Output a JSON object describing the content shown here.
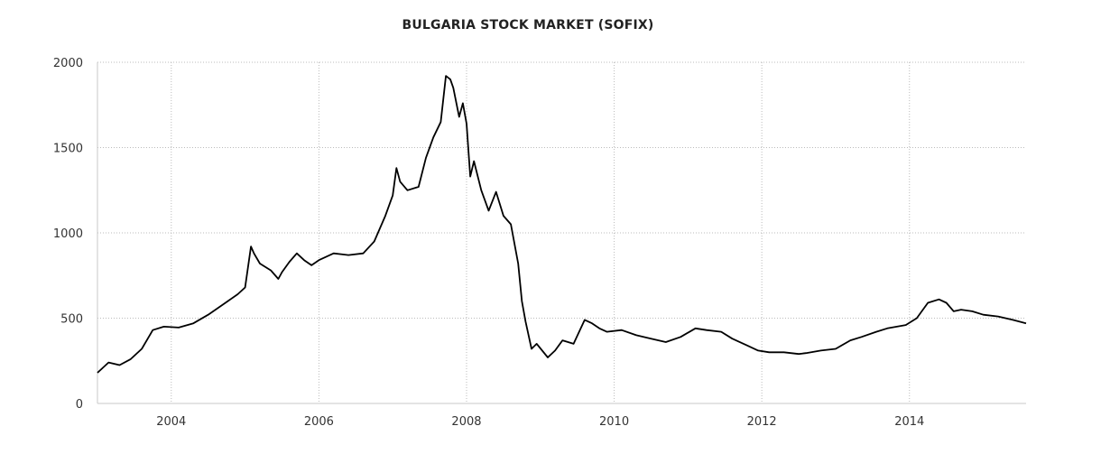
{
  "chart_data": {
    "type": "line",
    "title": "BULGARIA STOCK MARKET (SOFIX)",
    "xlabel": "",
    "ylabel": "",
    "grid": true,
    "legend": "none",
    "line_color": "#000000",
    "grid_color": "#bbbbbb",
    "xlim": [
      2003.0,
      2015.58
    ],
    "ylim": [
      0,
      2000
    ],
    "x_ticks": [
      2004,
      2006,
      2008,
      2010,
      2012,
      2014
    ],
    "y_ticks": [
      0,
      500,
      1000,
      1500,
      2000
    ],
    "series": [
      {
        "x": [
          2003.0,
          2003.15,
          2003.3,
          2003.45,
          2003.6,
          2003.75,
          2003.9,
          2004.1,
          2004.3,
          2004.5,
          2004.7,
          2004.9,
          2005.0,
          2005.08,
          2005.12,
          2005.2,
          2005.35,
          2005.45,
          2005.5,
          2005.6,
          2005.7,
          2005.8,
          2005.9,
          2006.0,
          2006.2,
          2006.4,
          2006.6,
          2006.75,
          2006.9,
          2007.0,
          2007.05,
          2007.1,
          2007.2,
          2007.35,
          2007.45,
          2007.55,
          2007.65,
          2007.72,
          2007.78,
          2007.82,
          2007.9,
          2007.95,
          2008.0,
          2008.05,
          2008.1,
          2008.2,
          2008.3,
          2008.4,
          2008.5,
          2008.6,
          2008.7,
          2008.75,
          2008.8,
          2008.88,
          2008.95,
          2009.1,
          2009.2,
          2009.3,
          2009.45,
          2009.6,
          2009.7,
          2009.8,
          2009.9,
          2010.1,
          2010.3,
          2010.5,
          2010.7,
          2010.9,
          2011.1,
          2011.25,
          2011.45,
          2011.6,
          2011.8,
          2011.95,
          2012.1,
          2012.3,
          2012.5,
          2012.6,
          2012.8,
          2013.0,
          2013.2,
          2013.35,
          2013.55,
          2013.7,
          2013.95,
          2014.1,
          2014.25,
          2014.4,
          2014.5,
          2014.6,
          2014.7,
          2014.85,
          2015.0,
          2015.2,
          2015.4,
          2015.58
        ],
        "y": [
          180,
          240,
          225,
          260,
          320,
          430,
          450,
          445,
          470,
          520,
          580,
          640,
          680,
          920,
          880,
          820,
          780,
          730,
          770,
          830,
          880,
          840,
          810,
          840,
          880,
          870,
          880,
          950,
          1100,
          1220,
          1380,
          1300,
          1250,
          1270,
          1440,
          1560,
          1650,
          1920,
          1900,
          1850,
          1680,
          1760,
          1640,
          1330,
          1420,
          1250,
          1130,
          1240,
          1100,
          1050,
          820,
          600,
          480,
          320,
          350,
          270,
          310,
          370,
          350,
          490,
          470,
          440,
          420,
          430,
          400,
          380,
          360,
          390,
          440,
          430,
          420,
          380,
          340,
          310,
          300,
          300,
          290,
          295,
          310,
          320,
          370,
          390,
          420,
          440,
          460,
          500,
          590,
          610,
          590,
          540,
          550,
          540,
          520,
          510,
          490,
          470
        ]
      }
    ]
  }
}
